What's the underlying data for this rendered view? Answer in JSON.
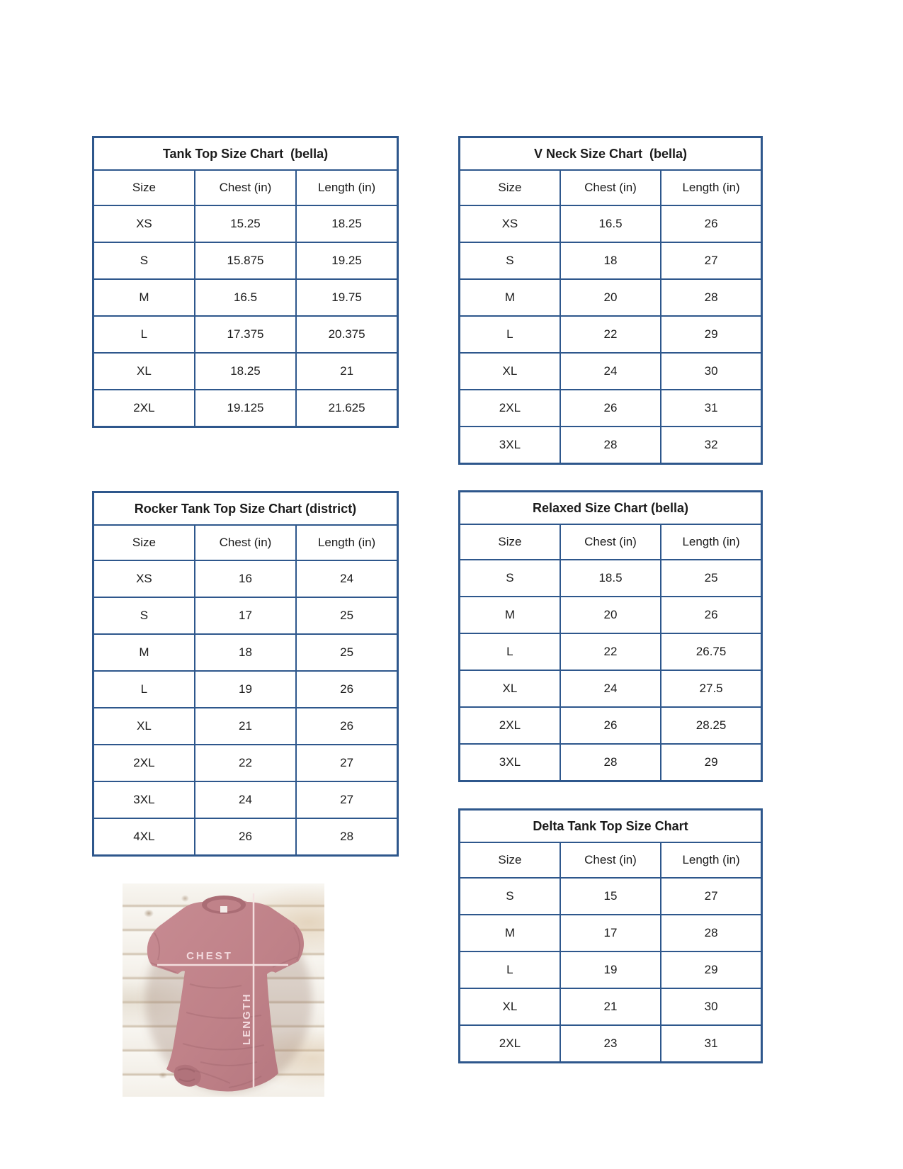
{
  "page": {
    "background": "#ffffff",
    "table_border_color": "#2e578c",
    "text_color": "#1b1b1b"
  },
  "chart_data": [
    {
      "type": "table",
      "id": "tank-top-bella",
      "title": "Tank Top Size Chart  (bella)",
      "columns": [
        "Size",
        "Chest (in)",
        "Length (in)"
      ],
      "rows": [
        [
          "XS",
          "15.25",
          "18.25"
        ],
        [
          "S",
          "15.875",
          "19.25"
        ],
        [
          "M",
          "16.5",
          "19.75"
        ],
        [
          "L",
          "17.375",
          "20.375"
        ],
        [
          "XL",
          "18.25",
          "21"
        ],
        [
          "2XL",
          "19.125",
          "21.625"
        ]
      ]
    },
    {
      "type": "table",
      "id": "v-neck-bella",
      "title": "V Neck Size Chart  (bella)",
      "columns": [
        "Size",
        "Chest (in)",
        "Length (in)"
      ],
      "rows": [
        [
          "XS",
          "16.5",
          "26"
        ],
        [
          "S",
          "18",
          "27"
        ],
        [
          "M",
          "20",
          "28"
        ],
        [
          "L",
          "22",
          "29"
        ],
        [
          "XL",
          "24",
          "30"
        ],
        [
          "2XL",
          "26",
          "31"
        ],
        [
          "3XL",
          "28",
          "32"
        ]
      ]
    },
    {
      "type": "table",
      "id": "rocker-tank-top-district",
      "title": "Rocker Tank Top Size Chart (district)",
      "columns": [
        "Size",
        "Chest (in)",
        "Length (in)"
      ],
      "rows": [
        [
          "XS",
          "16",
          "24"
        ],
        [
          "S",
          "17",
          "25"
        ],
        [
          "M",
          "18",
          "25"
        ],
        [
          "L",
          "19",
          "26"
        ],
        [
          "XL",
          "21",
          "26"
        ],
        [
          "2XL",
          "22",
          "27"
        ],
        [
          "3XL",
          "24",
          "27"
        ],
        [
          "4XL",
          "26",
          "28"
        ]
      ]
    },
    {
      "type": "table",
      "id": "relaxed-bella",
      "title": "Relaxed Size Chart (bella)",
      "columns": [
        "Size",
        "Chest (in)",
        "Length (in)"
      ],
      "rows": [
        [
          "S",
          "18.5",
          "25"
        ],
        [
          "M",
          "20",
          "26"
        ],
        [
          "L",
          "22",
          "26.75"
        ],
        [
          "XL",
          "24",
          "27.5"
        ],
        [
          "2XL",
          "26",
          "28.25"
        ],
        [
          "3XL",
          "28",
          "29"
        ]
      ]
    },
    {
      "type": "table",
      "id": "delta-tank-top",
      "title": "Delta Tank Top Size Chart",
      "columns": [
        "Size",
        "Chest (in)",
        "Length (in)"
      ],
      "rows": [
        [
          "S",
          "15",
          "27"
        ],
        [
          "M",
          "17",
          "28"
        ],
        [
          "L",
          "19",
          "29"
        ],
        [
          "XL",
          "21",
          "30"
        ],
        [
          "2XL",
          "23",
          "31"
        ]
      ]
    }
  ],
  "photo": {
    "chest_label": "CHEST",
    "length_label": "LENGTH",
    "shirt_color": "#bf8188",
    "measure_line_color": "#f6e3e3"
  }
}
